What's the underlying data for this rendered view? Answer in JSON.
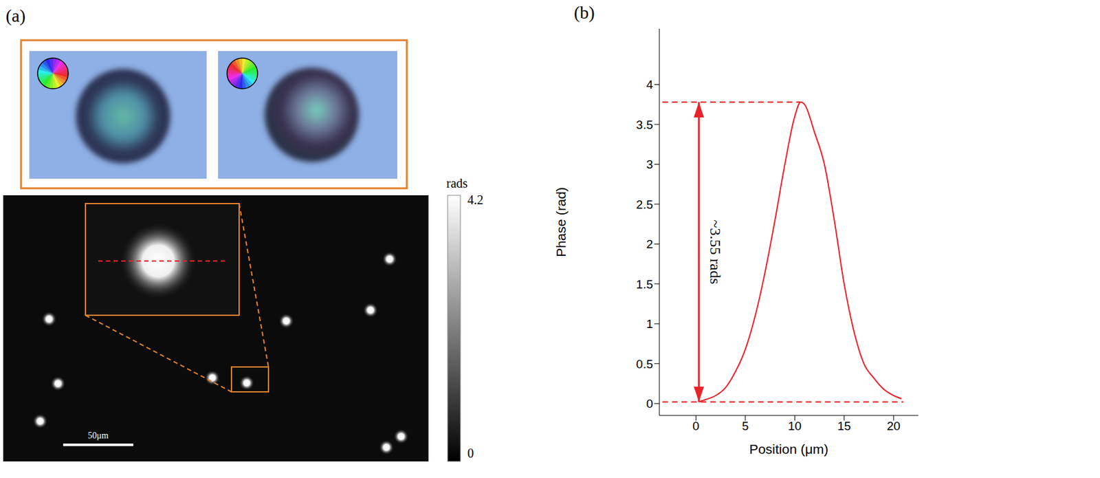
{
  "panel_labels": [
    "(a)",
    "(b)"
  ],
  "phase_image": {
    "scale_bar": "50μm",
    "colorbar": {
      "title": "rads",
      "range": [
        0,
        4.2
      ],
      "ticks": [
        0,
        4.2
      ]
    }
  },
  "chart_data": {
    "type": "line",
    "x_label": "Position (μm)",
    "y_label": "Phase (rad)",
    "x": [
      0.3,
      1,
      2,
      3,
      4,
      5,
      6,
      7,
      8,
      9,
      10,
      10.6,
      11,
      12,
      13,
      14,
      15,
      16,
      17,
      18,
      19,
      20,
      20.8
    ],
    "values": [
      0.02,
      0.05,
      0.1,
      0.2,
      0.4,
      0.68,
      1.1,
      1.65,
      2.3,
      3.0,
      3.6,
      3.78,
      3.75,
      3.4,
      3.0,
      2.3,
      1.5,
      0.9,
      0.5,
      0.32,
      0.18,
      0.1,
      0.06
    ],
    "color": "#e8232b",
    "line_style": "solid",
    "xlim": [
      -3.7,
      22.5
    ],
    "ylim": [
      -0.15,
      4.7
    ],
    "xticks": [
      0,
      5,
      10,
      15,
      20
    ],
    "yticks": [
      0,
      0.5,
      1,
      1.5,
      2,
      2.5,
      3,
      3.5,
      4
    ],
    "grid": false,
    "reference_lines": [
      {
        "y": 3.78,
        "x": [
          -3.4,
          10.6
        ],
        "line_style": "dashed"
      },
      {
        "y": 0.02,
        "x": [
          -3.4,
          21
        ],
        "line_style": "dashed"
      }
    ],
    "annotations": [
      {
        "text": "~3.55 rads",
        "x": 0.3,
        "y": [
          0.02,
          3.78
        ]
      }
    ]
  }
}
